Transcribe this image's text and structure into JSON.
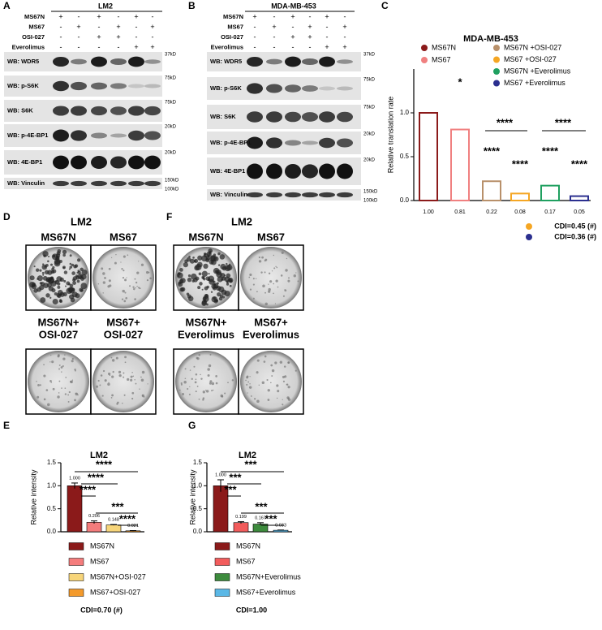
{
  "panel_labels": [
    "A",
    "B",
    "C",
    "D",
    "E",
    "F",
    "G"
  ],
  "blots": [
    {
      "title": "LM2",
      "treatments": [
        {
          "name": "MS67N",
          "signs": [
            "+",
            "-",
            "+",
            "-",
            "+",
            "-"
          ]
        },
        {
          "name": "MS67",
          "signs": [
            "-",
            "+",
            "-",
            "+",
            "-",
            "+"
          ]
        },
        {
          "name": "OSI-027",
          "signs": [
            "-",
            "-",
            "+",
            "+",
            "-",
            "-"
          ]
        },
        {
          "name": "Everolimus",
          "signs": [
            "-",
            "-",
            "-",
            "-",
            "+",
            "+"
          ]
        }
      ],
      "rows": [
        {
          "label": "WB: WDR5",
          "markers": [
            "37kD"
          ]
        },
        {
          "label": "WB: p-S6K",
          "markers": [
            "75kD"
          ]
        },
        {
          "label": "WB: S6K",
          "markers": [
            "75kD"
          ]
        },
        {
          "label": "WB: p-4E-BP1",
          "markers": [
            "20kD"
          ]
        },
        {
          "label": "WB: 4E-BP1",
          "markers": [
            "20kD"
          ]
        },
        {
          "label": "WB: Vinculin",
          "markers": [
            "150kD",
            "100kD"
          ]
        }
      ]
    },
    {
      "title": "MDA-MB-453",
      "treatments": [
        {
          "name": "MS67N",
          "signs": [
            "+",
            "-",
            "+",
            "-",
            "+",
            "-"
          ]
        },
        {
          "name": "MS67",
          "signs": [
            "-",
            "+",
            "-",
            "+",
            "-",
            "+"
          ]
        },
        {
          "name": "OSI-027",
          "signs": [
            "-",
            "-",
            "+",
            "+",
            "-",
            "-"
          ]
        },
        {
          "name": "Everolimus",
          "signs": [
            "-",
            "-",
            "-",
            "-",
            "+",
            "+"
          ]
        }
      ],
      "rows": [
        {
          "label": "WB: WDR5",
          "markers": [
            "37kD"
          ]
        },
        {
          "label": "WB: p-S6K",
          "markers": [
            "75kD"
          ]
        },
        {
          "label": "WB: S6K",
          "markers": [
            "75kD"
          ]
        },
        {
          "label": "WB: p-4E-BP1",
          "markers": [
            "20kD"
          ]
        },
        {
          "label": "WB: 4E-BP1",
          "markers": [
            "20kD"
          ]
        },
        {
          "label": "WB: Vinculin",
          "markers": [
            "150kD",
            "100kD"
          ]
        }
      ]
    }
  ],
  "colonies": [
    {
      "title": "LM2",
      "conditions": [
        [
          "MS67N"
        ],
        [
          "MS67"
        ],
        [
          "MS67N+",
          "OSI-027"
        ],
        [
          "MS67+",
          "OSI-027"
        ]
      ]
    },
    {
      "title": "LM2",
      "conditions": [
        [
          "MS67N"
        ],
        [
          "MS67"
        ],
        [
          "MS67N+",
          "Everolimus"
        ],
        [
          "MS67+",
          "Everolimus"
        ]
      ]
    }
  ],
  "chart_data": [
    {
      "type": "bar",
      "style": "outline",
      "title": "MDA-MB-453",
      "y_label": "Relative translation rate",
      "ylim": [
        0,
        1.5
      ],
      "yticks": [
        {
          "value": 0,
          "label": "0.0"
        },
        {
          "value": 0.5,
          "label": "0.5"
        },
        {
          "value": 1,
          "label": "1.0"
        }
      ],
      "series": [
        {
          "name": "MS67N",
          "color": "#8b1a1a",
          "values": [
            1.0
          ],
          "value_labels": [
            "1.00"
          ]
        },
        {
          "name": "MS67",
          "color": "#f08080",
          "values": [
            0.81
          ],
          "value_labels": [
            "0.81"
          ]
        },
        {
          "name": "MS67N +OSI-027",
          "color": "#b8906a",
          "values": [
            0.22
          ],
          "value_labels": [
            "0.22"
          ]
        },
        {
          "name": "MS67 +OSI-027",
          "color": "#f5a623",
          "values": [
            0.08
          ],
          "value_labels": [
            "0.08"
          ]
        },
        {
          "name": "MS67N +Everolimus",
          "color": "#1fa060",
          "values": [
            0.17
          ],
          "value_labels": [
            "0.17"
          ]
        },
        {
          "name": "MS67 +Everolimus",
          "color": "#2b2f8f",
          "values": [
            0.05
          ],
          "value_labels": [
            "0.05"
          ]
        }
      ],
      "annotations": [
        "*",
        "****",
        "****",
        "****",
        "****",
        "****",
        "****"
      ],
      "cdi": [
        {
          "text": "CDI=0.45 (#)",
          "color": "#f5a623"
        },
        {
          "text": "CDI=0.36 (#)",
          "color": "#2b2f8f"
        }
      ]
    },
    {
      "type": "bar",
      "style": "filled",
      "title": "LM2",
      "y_label": "Relative intensity",
      "ylim": [
        0,
        1.5
      ],
      "yticks": [
        {
          "value": 0,
          "label": "0.0"
        },
        {
          "value": 0.5,
          "label": "0.5"
        },
        {
          "value": 1,
          "label": "1.0"
        },
        {
          "value": 1.5,
          "label": "1.5"
        }
      ],
      "series": [
        {
          "name": "MS67N",
          "color": "#8b1a1a",
          "values": [
            1.0
          ],
          "errors": [
            0.06
          ],
          "value_labels": [
            "1.000"
          ]
        },
        {
          "name": "MS67",
          "color": "#f47c7c",
          "values": [
            0.206
          ],
          "errors": [
            0.03
          ],
          "value_labels": [
            "0.206"
          ]
        },
        {
          "name": "MS67N+OSI-027",
          "color": "#f7d57a",
          "values": [
            0.148
          ],
          "errors": [
            0.01
          ],
          "value_labels": [
            "0.148"
          ]
        },
        {
          "name": "MS67+OSI-027",
          "color": "#f39a2c",
          "values": [
            0.021
          ],
          "errors": [
            0.005
          ],
          "value_labels": [
            "0.021"
          ]
        }
      ],
      "annotations": [
        "****",
        "****",
        "****",
        "***",
        "****"
      ],
      "note": "CDI=0.70 (#)"
    },
    {
      "type": "bar",
      "style": "filled",
      "title": "LM2",
      "y_label": "Relative intensity",
      "ylim": [
        0,
        1.5
      ],
      "yticks": [
        {
          "value": 0,
          "label": "0.0"
        },
        {
          "value": 0.5,
          "label": "0.5"
        },
        {
          "value": 1,
          "label": "1.0"
        },
        {
          "value": 1.5,
          "label": "1.5"
        }
      ],
      "series": [
        {
          "name": "MS67N",
          "color": "#8b1a1a",
          "values": [
            1.0
          ],
          "errors": [
            0.13
          ],
          "value_labels": [
            "1.000"
          ]
        },
        {
          "name": "MS67",
          "color": "#f25c5c",
          "values": [
            0.199
          ],
          "errors": [
            0.02
          ],
          "value_labels": [
            "0.199"
          ]
        },
        {
          "name": "MS67N+Everolimus",
          "color": "#3d8b3d",
          "values": [
            0.167
          ],
          "errors": [
            0.03
          ],
          "value_labels": [
            "0.167"
          ]
        },
        {
          "name": "MS67+Everolimus",
          "color": "#5bb8e6",
          "values": [
            0.033
          ],
          "errors": [
            0.005
          ],
          "value_labels": [
            "0.033"
          ]
        }
      ],
      "annotations": [
        "***",
        "***",
        "***",
        "***",
        "***"
      ],
      "note": "CDI=1.00"
    }
  ]
}
